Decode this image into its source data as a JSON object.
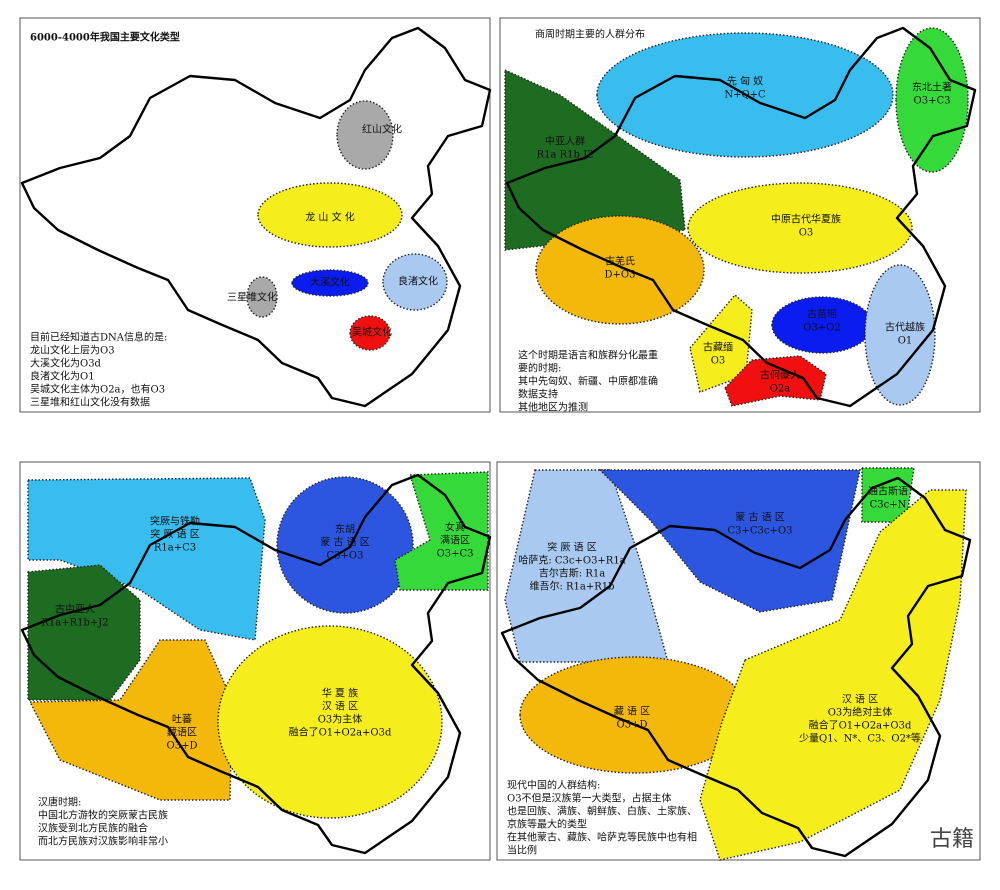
{
  "panels": [
    {
      "title": "6000-4000年我国主要文化类型",
      "regions": [
        {
          "lines": [
            "红山文化"
          ],
          "color": "#a9a9a9"
        },
        {
          "lines": [
            "龙 山 文 化"
          ],
          "color": "#f5ee1c"
        },
        {
          "lines": [
            "大溪文化"
          ],
          "color": "#0a1cf0"
        },
        {
          "lines": [
            "良渚文化"
          ],
          "color": "#a9c9f0"
        },
        {
          "lines": [
            "三星堆文化"
          ],
          "color": "#a9a9a9"
        },
        {
          "lines": [
            "吴城文化"
          ],
          "color": "#f01010"
        }
      ],
      "notes": [
        "目前已经知道古DNA信息的是:",
        "龙山文化上层为O3",
        "大溪文化为O3d",
        "良渚文化为O1",
        "吴城文化主体为O2a，也有O3",
        "三星堆和红山文化没有数据"
      ]
    },
    {
      "title": "商周时期主要的人群分布",
      "regions": [
        {
          "lines": [
            "先 匈 奴",
            "N+Q+C"
          ],
          "color": "#38bdee"
        },
        {
          "lines": [
            "东北土著",
            "O3+C3"
          ],
          "color": "#35d93a"
        },
        {
          "lines": [
            "中亚人群",
            "R1a  R1b  J2"
          ],
          "color": "#1e6b22"
        },
        {
          "lines": [
            "古羌氏",
            "D+O3"
          ],
          "color": "#f3b80a"
        },
        {
          "lines": [
            "中原古代华夏族",
            "O3"
          ],
          "color": "#f5ee1c"
        },
        {
          "lines": [
            "古藏缅",
            "O3"
          ],
          "color": "#f5ee1c"
        },
        {
          "lines": [
            "古苗瑶",
            "O3+O2"
          ],
          "color": "#0a1cf0"
        },
        {
          "lines": [
            "古代越族",
            "O1"
          ],
          "color": "#a9c9f0"
        },
        {
          "lines": [
            "古侗傣人",
            "O2a"
          ],
          "color": "#f01010"
        }
      ],
      "notes": [
        "这个时期是语言和族群分化最重",
        "要的时期:",
        "其中先匈奴、新疆、中原都准确",
        "数据支持",
        "其他地区为推测"
      ]
    },
    {
      "regions": [
        {
          "lines": [
            "突厥与铁勒",
            "突 厥 语 区",
            "R1a+C3"
          ],
          "color": "#38bdee"
        },
        {
          "lines": [
            "东胡",
            "蒙 古 语 区",
            "C3+O3"
          ],
          "color": "#2d56e0"
        },
        {
          "lines": [
            "女真",
            "满语区",
            "O3+C3"
          ],
          "color": "#35d93a"
        },
        {
          "lines": [
            "古中亚人",
            "R1a+R1b+J2"
          ],
          "color": "#1e6b22"
        },
        {
          "lines": [
            "吐蕃",
            "藏语区",
            "O3+D"
          ],
          "color": "#f3b80a"
        },
        {
          "lines": [
            "华 夏 族",
            "汉 语 区",
            "O3为主体",
            "融合了O1+O2a+O3d"
          ],
          "color": "#f5ee1c"
        }
      ],
      "notes": [
        "汉唐时期:",
        "中国北方游牧的突厥蒙古民族",
        "汉族受到北方民族的融合",
        "而北方民族对汉族影响非常小"
      ]
    },
    {
      "regions": [
        {
          "lines": [
            "突 厥 语 区",
            "哈萨克: C3c+O3+R1a",
            "吉尔吉斯: R1a",
            "维吾尔: R1a+R1b"
          ],
          "color": "#a9c9f0"
        },
        {
          "lines": [
            "蒙 古 语 区",
            "C3+C3c+O3"
          ],
          "color": "#2d56e0"
        },
        {
          "lines": [
            "通古斯语",
            "C3c+N"
          ],
          "color": "#35d93a"
        },
        {
          "lines": [
            "藏 语 区",
            "O3+D"
          ],
          "color": "#f3b80a"
        },
        {
          "lines": [
            "汉 语 区",
            "O3为绝对主体",
            "融合了O1+O2a+O3d",
            "少量Q1、N*、C3、O2*等"
          ],
          "color": "#f5ee1c"
        }
      ],
      "notes": [
        "现代中国的人群结构:",
        "O3不但是汉族第一大类型，占据主体",
        "也是回族、满族、朝鲜族、白族、土家族、",
        "京族等最大的类型",
        "在其他蒙古、藏族、哈萨克等民族中也有相",
        "当比例"
      ]
    }
  ],
  "watermark": "古籍"
}
